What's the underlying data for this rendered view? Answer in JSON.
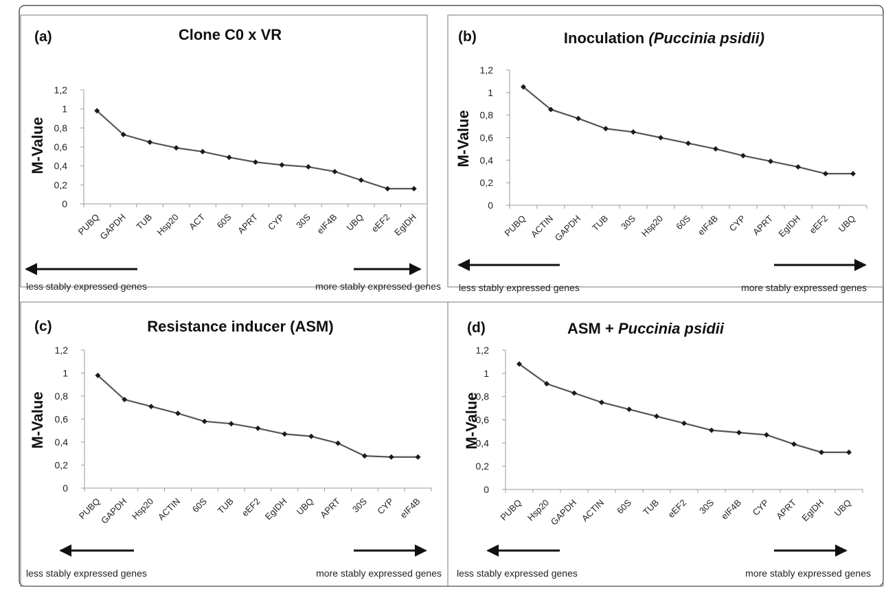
{
  "colors": {
    "line": "#555555",
    "marker": "#1a1a1a",
    "frame": "#777777",
    "axis": "#999999",
    "arrow": "#111111"
  },
  "chart_data": [
    {
      "panel": "(a)",
      "title": "Clone C0 x VR",
      "title_italic": "",
      "type": "line",
      "ylabel": "M-Value",
      "ylim": [
        0,
        1.2
      ],
      "yticks": [
        "0",
        "0,2",
        "0,4",
        "0,6",
        "0,8",
        "1",
        "1,2"
      ],
      "categories": [
        "PUBQ",
        "GAPDH",
        "TUB",
        "Hsp20",
        "ACT",
        "60S",
        "APRT",
        "CYP",
        "30S",
        "eIF4B",
        "UBQ",
        "eEF2",
        "EgIDH"
      ],
      "values": [
        0.98,
        0.73,
        0.65,
        0.59,
        0.55,
        0.49,
        0.44,
        0.41,
        0.39,
        0.34,
        0.25,
        0.16,
        0.16
      ],
      "left_note": "less stably expressed genes",
      "right_note": "more stably expressed genes"
    },
    {
      "panel": "(b)",
      "title": "Inoculation ",
      "title_italic": "(Puccinia psidii)",
      "type": "line",
      "ylabel": "M-Value",
      "ylim": [
        0,
        1.2
      ],
      "yticks": [
        "0",
        "0,2",
        "0,4",
        "0,6",
        "0,8",
        "1",
        "1,2"
      ],
      "categories": [
        "PUBQ",
        "ACTIN",
        "GAPDH",
        "TUB",
        "30S",
        "Hsp20",
        "60S",
        "eIF4B",
        "CYP",
        "APRT",
        "EgIDH",
        "eEF2",
        "UBQ"
      ],
      "values": [
        1.05,
        0.85,
        0.77,
        0.68,
        0.65,
        0.6,
        0.55,
        0.5,
        0.44,
        0.39,
        0.34,
        0.28,
        0.28
      ],
      "left_note": "less stably expressed genes",
      "right_note": "more stably expressed genes"
    },
    {
      "panel": "(c)",
      "title": "Resistance inducer (ASM)",
      "title_italic": "",
      "type": "line",
      "ylabel": "M-Value",
      "ylim": [
        0,
        1.2
      ],
      "yticks": [
        "0",
        "0,2",
        "0,4",
        "0,6",
        "0,8",
        "1",
        "1,2"
      ],
      "categories": [
        "PUBQ",
        "GAPDH",
        "Hsp20",
        "ACTIN",
        "60S",
        "TUB",
        "eEF2",
        "EgIDH",
        "UBQ",
        "APRT",
        "30S",
        "CYP",
        "eIF4B"
      ],
      "values": [
        0.98,
        0.77,
        0.71,
        0.65,
        0.58,
        0.56,
        0.52,
        0.47,
        0.45,
        0.39,
        0.28,
        0.27,
        0.27
      ],
      "left_note": "less stably expressed genes",
      "right_note": "more stably expressed genes"
    },
    {
      "panel": "(d)",
      "title": "ASM + ",
      "title_italic": "Puccinia psidii",
      "type": "line",
      "ylabel": "M-Value",
      "ylim": [
        0,
        1.2
      ],
      "yticks": [
        "0",
        "0,2",
        "0,4",
        "0,6",
        "0,8",
        "1",
        "1,2"
      ],
      "categories": [
        "PUBQ",
        "Hsp20",
        "GAPDH",
        "ACTIN",
        "60S",
        "TUB",
        "eEF2",
        "30S",
        "eIF4B",
        "CYP",
        "APRT",
        "EgIDH",
        "UBQ"
      ],
      "values": [
        1.08,
        0.91,
        0.83,
        0.75,
        0.69,
        0.63,
        0.57,
        0.51,
        0.49,
        0.47,
        0.39,
        0.32,
        0.32
      ],
      "left_note": "less stably expressed genes",
      "right_note": "more stably expressed genes"
    }
  ]
}
